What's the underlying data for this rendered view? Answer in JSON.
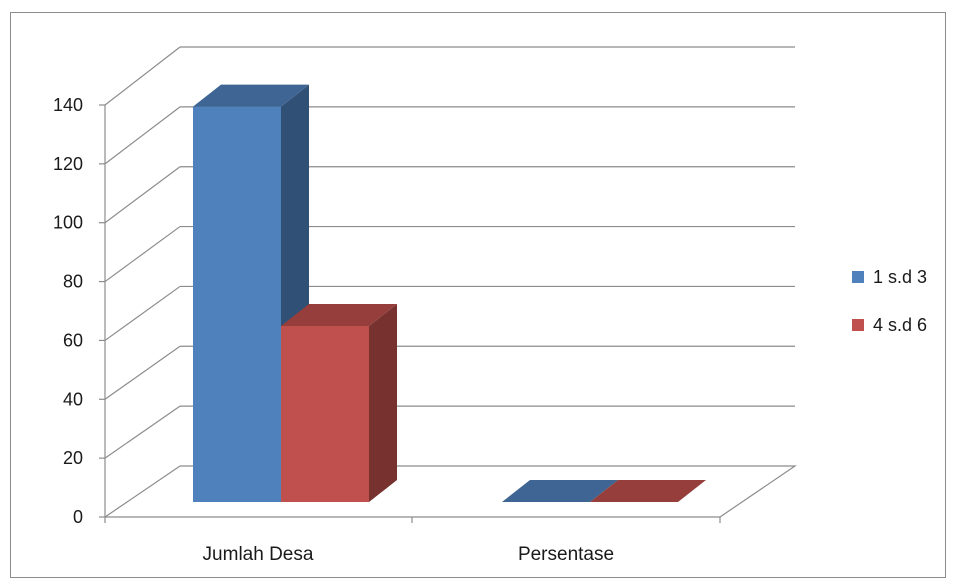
{
  "chart_data": {
    "type": "bar",
    "categories": [
      "Jumlah Desa",
      "Persentase"
    ],
    "series": [
      {
        "name": "1 s.d 3",
        "values": [
          137,
          0
        ],
        "color": "#4F81BD"
      },
      {
        "name": "4 s.d 6",
        "values": [
          61,
          0
        ],
        "color": "#C0504D"
      }
    ],
    "ylim": [
      0,
      140
    ],
    "yticks": [
      0,
      20,
      40,
      60,
      80,
      100,
      120,
      140
    ],
    "grid": true,
    "legend_position": "right",
    "style": "3d-clustered-column"
  }
}
